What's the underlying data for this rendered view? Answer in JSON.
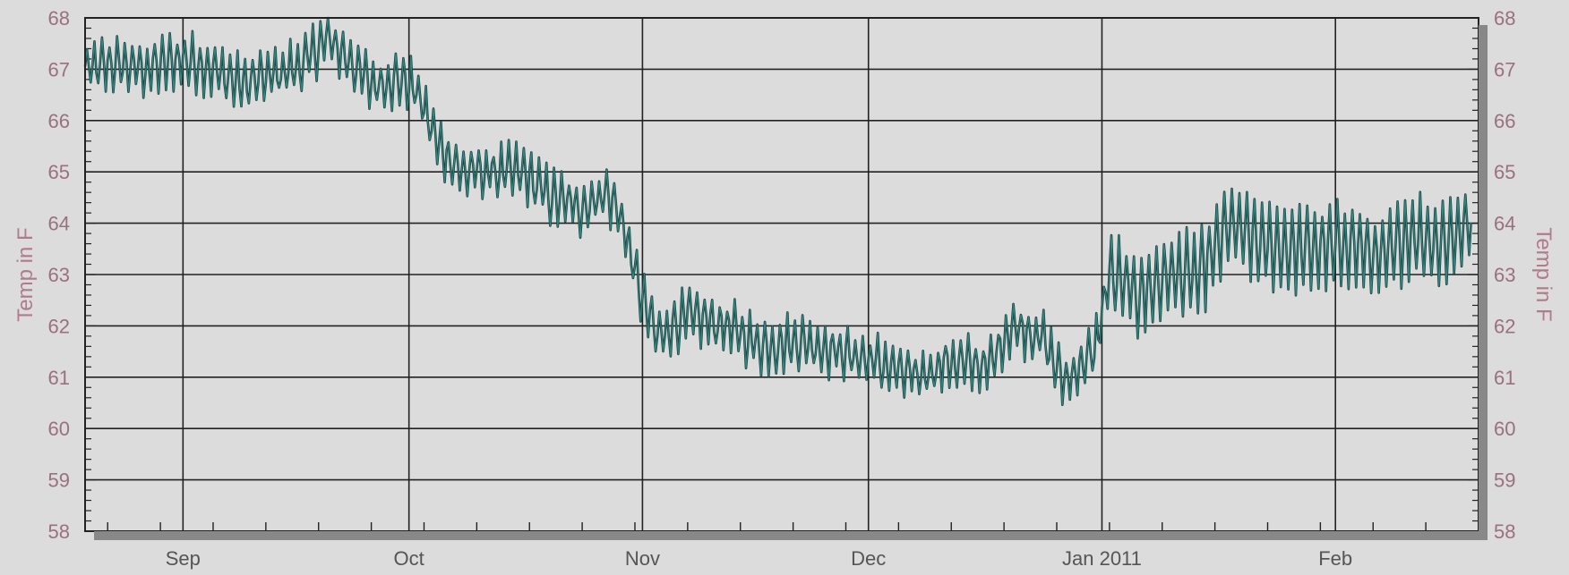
{
  "chart_data": {
    "type": "line",
    "title": "",
    "ylabel": "Temp in F",
    "ylabel_right": "Temp in F",
    "ylim": [
      58,
      68
    ],
    "y_ticks": [
      "58",
      "59",
      "60",
      "61",
      "62",
      "63",
      "64",
      "65",
      "66",
      "67",
      "68"
    ],
    "xlim": [
      "2010-08-19",
      "2011-02-20"
    ],
    "x_ticks": [
      {
        "date": "2010-09-01",
        "label": "Sep"
      },
      {
        "date": "2010-10-01",
        "label": "Oct"
      },
      {
        "date": "2010-11-01",
        "label": "Nov"
      },
      {
        "date": "2010-12-01",
        "label": "Dec"
      },
      {
        "date": "2011-01-01",
        "label": "Jan 2011"
      },
      {
        "date": "2011-02-01",
        "label": "Feb"
      }
    ],
    "grid": true,
    "legend": "none",
    "series": [
      {
        "color": "#2c8a84",
        "points": [
          [
            "2010-08-19",
            67.0
          ],
          [
            "2010-08-23",
            67.1
          ],
          [
            "2010-08-27",
            67.0
          ],
          [
            "2010-09-01",
            67.2
          ],
          [
            "2010-09-05",
            67.0
          ],
          [
            "2010-09-09",
            66.7
          ],
          [
            "2010-09-13",
            66.9
          ],
          [
            "2010-09-17",
            67.1
          ],
          [
            "2010-09-20",
            67.6
          ],
          [
            "2010-09-23",
            67.2
          ],
          [
            "2010-09-26",
            66.7
          ],
          [
            "2010-09-30",
            66.8
          ],
          [
            "2010-10-02",
            66.6
          ],
          [
            "2010-10-05",
            65.5
          ],
          [
            "2010-10-08",
            65.0
          ],
          [
            "2010-10-12",
            65.0
          ],
          [
            "2010-10-16",
            65.0
          ],
          [
            "2010-10-20",
            64.5
          ],
          [
            "2010-10-24",
            64.3
          ],
          [
            "2010-10-27",
            64.6
          ],
          [
            "2010-10-29",
            64.2
          ],
          [
            "2010-11-01",
            62.5
          ],
          [
            "2010-11-03",
            61.8
          ],
          [
            "2010-11-07",
            62.2
          ],
          [
            "2010-11-12",
            62.0
          ],
          [
            "2010-11-17",
            61.6
          ],
          [
            "2010-11-22",
            61.7
          ],
          [
            "2010-11-27",
            61.5
          ],
          [
            "2010-12-02",
            61.3
          ],
          [
            "2010-12-07",
            61.0
          ],
          [
            "2010-12-12",
            61.3
          ],
          [
            "2010-12-17",
            61.2
          ],
          [
            "2010-12-20",
            62.0
          ],
          [
            "2010-12-24",
            61.8
          ],
          [
            "2010-12-27",
            60.9
          ],
          [
            "2010-12-31",
            61.5
          ],
          [
            "2011-01-02",
            63.0
          ],
          [
            "2011-01-06",
            62.6
          ],
          [
            "2011-01-10",
            63.0
          ],
          [
            "2011-01-14",
            63.0
          ],
          [
            "2011-01-18",
            64.0
          ],
          [
            "2011-01-22",
            63.6
          ],
          [
            "2011-01-26",
            63.5
          ],
          [
            "2011-01-30",
            63.5
          ],
          [
            "2011-02-03",
            63.6
          ],
          [
            "2011-02-07",
            63.3
          ],
          [
            "2011-02-11",
            63.8
          ],
          [
            "2011-02-15",
            63.6
          ],
          [
            "2011-02-19",
            64.0
          ]
        ]
      }
    ]
  }
}
